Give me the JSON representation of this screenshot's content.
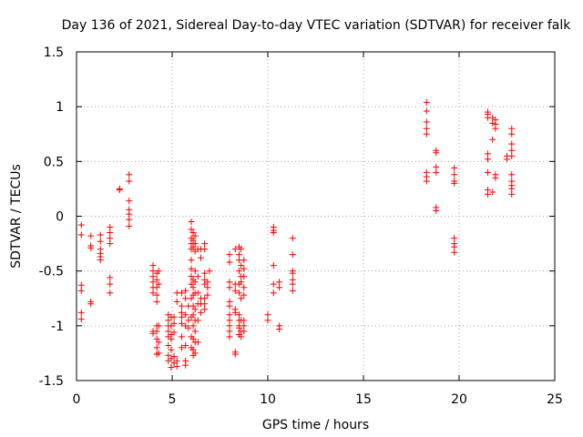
{
  "chart_data": {
    "type": "scatter",
    "title": "Day 136 of 2021, Sidereal Day-to-day VTEC variation (SDTVAR) for receiver falk",
    "xlabel": "GPS time / hours",
    "ylabel": "SDTVAR / TECUs",
    "xlim": [
      0,
      25
    ],
    "ylim": [
      -1.5,
      1.5
    ],
    "xticks": [
      0,
      5,
      10,
      15,
      20,
      25
    ],
    "xtick_labels": [
      "0",
      "5",
      "10",
      "15",
      "20",
      "25"
    ],
    "yticks": [
      -1.5,
      -1,
      -0.5,
      0,
      0.5,
      1,
      1.5
    ],
    "ytick_labels": [
      "-1.5",
      "-1",
      "-0.5",
      "0",
      "0.5",
      "1",
      "1.5"
    ],
    "grid": true,
    "marker": "+",
    "series": [
      {
        "name": "SDTVAR",
        "color": "#ff0000",
        "points": [
          [
            0.25,
            -0.08
          ],
          [
            0.25,
            -0.17
          ],
          [
            0.25,
            -0.63
          ],
          [
            0.25,
            -0.68
          ],
          [
            0.25,
            -0.88
          ],
          [
            0.25,
            -0.94
          ],
          [
            0.75,
            -0.18
          ],
          [
            0.75,
            -0.27
          ],
          [
            0.75,
            -0.29
          ],
          [
            0.75,
            -0.78
          ],
          [
            0.75,
            -0.8
          ],
          [
            1.25,
            -0.17
          ],
          [
            1.25,
            -0.23
          ],
          [
            1.25,
            -0.3
          ],
          [
            1.25,
            -0.34
          ],
          [
            1.25,
            -0.37
          ],
          [
            1.25,
            -0.4
          ],
          [
            1.75,
            -0.1
          ],
          [
            1.75,
            -0.15
          ],
          [
            1.75,
            -0.2
          ],
          [
            1.75,
            -0.25
          ],
          [
            1.75,
            -0.62
          ],
          [
            1.75,
            -0.56
          ],
          [
            1.75,
            -0.7
          ],
          [
            2.25,
            0.24
          ],
          [
            2.25,
            0.25
          ],
          [
            2.75,
            0.38
          ],
          [
            2.75,
            0.32
          ],
          [
            2.75,
            0.14
          ],
          [
            2.75,
            0.06
          ],
          [
            2.75,
            0.02
          ],
          [
            2.75,
            -0.03
          ],
          [
            2.75,
            -0.09
          ],
          [
            4.0,
            -0.45
          ],
          [
            4.0,
            -0.5
          ],
          [
            4.0,
            -0.55
          ],
          [
            4.0,
            -0.6
          ],
          [
            4.0,
            -0.65
          ],
          [
            4.0,
            -0.7
          ],
          [
            4.0,
            -1.05
          ],
          [
            4.0,
            -1.07
          ],
          [
            4.2,
            -0.52
          ],
          [
            4.2,
            -0.58
          ],
          [
            4.2,
            -0.65
          ],
          [
            4.2,
            -0.72
          ],
          [
            4.2,
            -0.78
          ],
          [
            4.2,
            -1.0
          ],
          [
            4.2,
            -1.05
          ],
          [
            4.2,
            -1.12
          ],
          [
            4.2,
            -1.2
          ],
          [
            4.2,
            -1.26
          ],
          [
            4.3,
            -0.5
          ],
          [
            4.3,
            -0.62
          ],
          [
            4.3,
            -1.0
          ],
          [
            4.3,
            -1.15
          ],
          [
            4.3,
            -1.25
          ],
          [
            4.8,
            -0.95
          ],
          [
            4.8,
            -1.0
          ],
          [
            4.8,
            -1.05
          ],
          [
            4.8,
            -1.1
          ],
          [
            4.8,
            -1.18
          ],
          [
            4.8,
            -1.27
          ],
          [
            4.8,
            -1.32
          ],
          [
            4.8,
            -0.9
          ],
          [
            4.95,
            -0.92
          ],
          [
            4.95,
            -1.0
          ],
          [
            4.95,
            -1.08
          ],
          [
            4.95,
            -1.12
          ],
          [
            4.95,
            -1.22
          ],
          [
            4.95,
            -1.3
          ],
          [
            4.95,
            -1.38
          ],
          [
            5.1,
            -0.92
          ],
          [
            5.1,
            -0.98
          ],
          [
            5.1,
            -1.06
          ],
          [
            5.1,
            -1.28
          ],
          [
            5.1,
            -1.34
          ],
          [
            5.25,
            -0.7
          ],
          [
            5.25,
            -0.78
          ],
          [
            5.25,
            -1.32
          ],
          [
            5.25,
            -1.37
          ],
          [
            5.5,
            -0.82
          ],
          [
            5.5,
            -0.88
          ],
          [
            5.5,
            -0.92
          ],
          [
            5.5,
            -0.98
          ],
          [
            5.5,
            -1.1
          ],
          [
            5.5,
            -1.2
          ],
          [
            5.5,
            -0.7
          ],
          [
            5.7,
            -0.68
          ],
          [
            5.7,
            -0.75
          ],
          [
            5.7,
            -0.9
          ],
          [
            5.7,
            -1.0
          ],
          [
            5.7,
            -1.18
          ],
          [
            5.7,
            -1.32
          ],
          [
            5.7,
            -1.36
          ],
          [
            5.85,
            -0.82
          ],
          [
            5.85,
            -0.95
          ],
          [
            5.85,
            -1.02
          ],
          [
            6.0,
            -0.05
          ],
          [
            6.0,
            -0.12
          ],
          [
            6.0,
            -0.2
          ],
          [
            6.0,
            -0.25
          ],
          [
            6.0,
            -0.3
          ],
          [
            6.0,
            -0.4
          ],
          [
            6.0,
            -0.48
          ],
          [
            6.0,
            -0.55
          ],
          [
            6.0,
            -0.62
          ],
          [
            6.0,
            -0.75
          ],
          [
            6.0,
            -0.92
          ],
          [
            6.0,
            -1.1
          ],
          [
            6.0,
            -1.2
          ],
          [
            6.1,
            -0.15
          ],
          [
            6.1,
            -0.22
          ],
          [
            6.1,
            -0.28
          ],
          [
            6.1,
            -0.58
          ],
          [
            6.1,
            -0.65
          ],
          [
            6.1,
            -0.72
          ],
          [
            6.1,
            -0.82
          ],
          [
            6.1,
            -0.9
          ],
          [
            6.1,
            -1.0
          ],
          [
            6.1,
            -1.12
          ],
          [
            6.1,
            -1.22
          ],
          [
            6.1,
            -1.27
          ],
          [
            6.2,
            -0.18
          ],
          [
            6.2,
            -0.25
          ],
          [
            6.2,
            -0.32
          ],
          [
            6.2,
            -0.5
          ],
          [
            6.2,
            -0.6
          ],
          [
            6.2,
            -0.7
          ],
          [
            6.2,
            -0.85
          ],
          [
            6.2,
            -0.95
          ],
          [
            6.2,
            -1.05
          ],
          [
            6.2,
            -1.15
          ],
          [
            6.2,
            -1.25
          ],
          [
            6.35,
            -0.3
          ],
          [
            6.35,
            -0.55
          ],
          [
            6.35,
            -0.7
          ],
          [
            6.35,
            -0.8
          ],
          [
            6.35,
            -0.95
          ],
          [
            6.35,
            -1.15
          ],
          [
            6.5,
            -0.3
          ],
          [
            6.5,
            -0.38
          ],
          [
            6.5,
            -0.75
          ],
          [
            6.5,
            -0.8
          ],
          [
            6.5,
            -0.88
          ],
          [
            6.7,
            -0.25
          ],
          [
            6.7,
            -0.3
          ],
          [
            6.7,
            -0.52
          ],
          [
            6.7,
            -0.58
          ],
          [
            6.7,
            -0.62
          ],
          [
            6.7,
            -0.75
          ],
          [
            6.7,
            -0.8
          ],
          [
            6.7,
            -0.85
          ],
          [
            6.85,
            -0.6
          ],
          [
            6.85,
            -0.65
          ],
          [
            6.85,
            -0.72
          ],
          [
            6.95,
            -0.5
          ],
          [
            8.0,
            -0.35
          ],
          [
            8.0,
            -0.42
          ],
          [
            8.0,
            -0.6
          ],
          [
            8.0,
            -0.65
          ],
          [
            8.0,
            -0.78
          ],
          [
            8.0,
            -0.82
          ],
          [
            8.0,
            -0.9
          ],
          [
            8.0,
            -0.95
          ],
          [
            8.0,
            -1.0
          ],
          [
            8.0,
            -1.05
          ],
          [
            8.0,
            -1.1
          ],
          [
            8.3,
            -0.3
          ],
          [
            8.3,
            -0.62
          ],
          [
            8.3,
            -0.68
          ],
          [
            8.3,
            -0.85
          ],
          [
            8.3,
            -0.88
          ],
          [
            8.3,
            -1.24
          ],
          [
            8.3,
            -1.26
          ],
          [
            8.5,
            -0.28
          ],
          [
            8.5,
            -0.35
          ],
          [
            8.5,
            -0.4
          ],
          [
            8.5,
            -0.5
          ],
          [
            8.5,
            -0.62
          ],
          [
            8.5,
            -0.7
          ],
          [
            8.5,
            -0.9
          ],
          [
            8.5,
            -0.95
          ],
          [
            8.5,
            -1.0
          ],
          [
            8.5,
            -1.02
          ],
          [
            8.5,
            -1.08
          ],
          [
            8.6,
            -0.3
          ],
          [
            8.6,
            -0.45
          ],
          [
            8.6,
            -0.55
          ],
          [
            8.6,
            -0.6
          ],
          [
            8.6,
            -0.75
          ],
          [
            8.6,
            -0.95
          ],
          [
            8.6,
            -1.05
          ],
          [
            8.6,
            -1.1
          ],
          [
            8.75,
            -0.4
          ],
          [
            8.75,
            -0.48
          ],
          [
            8.75,
            -0.55
          ],
          [
            8.75,
            -0.65
          ],
          [
            8.75,
            -0.72
          ],
          [
            8.75,
            -0.95
          ],
          [
            8.75,
            -1.0
          ],
          [
            8.75,
            -1.05
          ],
          [
            10.0,
            -0.9
          ],
          [
            10.0,
            -0.95
          ],
          [
            10.3,
            -0.1
          ],
          [
            10.3,
            -0.13
          ],
          [
            10.3,
            -0.15
          ],
          [
            10.3,
            -0.45
          ],
          [
            10.3,
            -0.62
          ],
          [
            10.3,
            -0.7
          ],
          [
            10.6,
            -0.6
          ],
          [
            10.6,
            -0.65
          ],
          [
            10.6,
            -1.0
          ],
          [
            10.6,
            -1.03
          ],
          [
            11.3,
            -0.2
          ],
          [
            11.3,
            -0.35
          ],
          [
            11.3,
            -0.5
          ],
          [
            11.3,
            -0.52
          ],
          [
            11.3,
            -0.58
          ],
          [
            11.3,
            -0.62
          ],
          [
            11.3,
            -0.68
          ],
          [
            18.3,
            1.04
          ],
          [
            18.3,
            0.96
          ],
          [
            18.3,
            0.86
          ],
          [
            18.3,
            0.8
          ],
          [
            18.3,
            0.75
          ],
          [
            18.3,
            0.4
          ],
          [
            18.3,
            0.36
          ],
          [
            18.3,
            0.32
          ],
          [
            18.8,
            0.6
          ],
          [
            18.8,
            0.58
          ],
          [
            18.8,
            0.45
          ],
          [
            18.8,
            0.4
          ],
          [
            18.8,
            0.08
          ],
          [
            18.8,
            0.05
          ],
          [
            19.75,
            0.44
          ],
          [
            19.75,
            0.38
          ],
          [
            19.75,
            0.32
          ],
          [
            19.75,
            0.3
          ],
          [
            19.75,
            -0.2
          ],
          [
            19.75,
            -0.25
          ],
          [
            19.75,
            -0.28
          ],
          [
            19.75,
            -0.33
          ],
          [
            21.5,
            0.95
          ],
          [
            21.5,
            0.93
          ],
          [
            21.5,
            0.9
          ],
          [
            21.5,
            0.57
          ],
          [
            21.5,
            0.52
          ],
          [
            21.5,
            0.4
          ],
          [
            21.5,
            0.24
          ],
          [
            21.5,
            0.2
          ],
          [
            21.75,
            0.9
          ],
          [
            21.75,
            0.85
          ],
          [
            21.75,
            0.7
          ],
          [
            21.75,
            0.22
          ],
          [
            21.9,
            0.88
          ],
          [
            21.9,
            0.84
          ],
          [
            21.9,
            0.8
          ],
          [
            21.9,
            0.38
          ],
          [
            21.9,
            0.35
          ],
          [
            22.5,
            0.52
          ],
          [
            22.5,
            0.55
          ],
          [
            22.75,
            0.8
          ],
          [
            22.75,
            0.75
          ],
          [
            22.75,
            0.66
          ],
          [
            22.75,
            0.6
          ],
          [
            22.75,
            0.55
          ],
          [
            22.75,
            0.38
          ],
          [
            22.75,
            0.32
          ],
          [
            22.75,
            0.28
          ],
          [
            22.75,
            0.25
          ],
          [
            22.75,
            0.2
          ]
        ]
      }
    ]
  }
}
